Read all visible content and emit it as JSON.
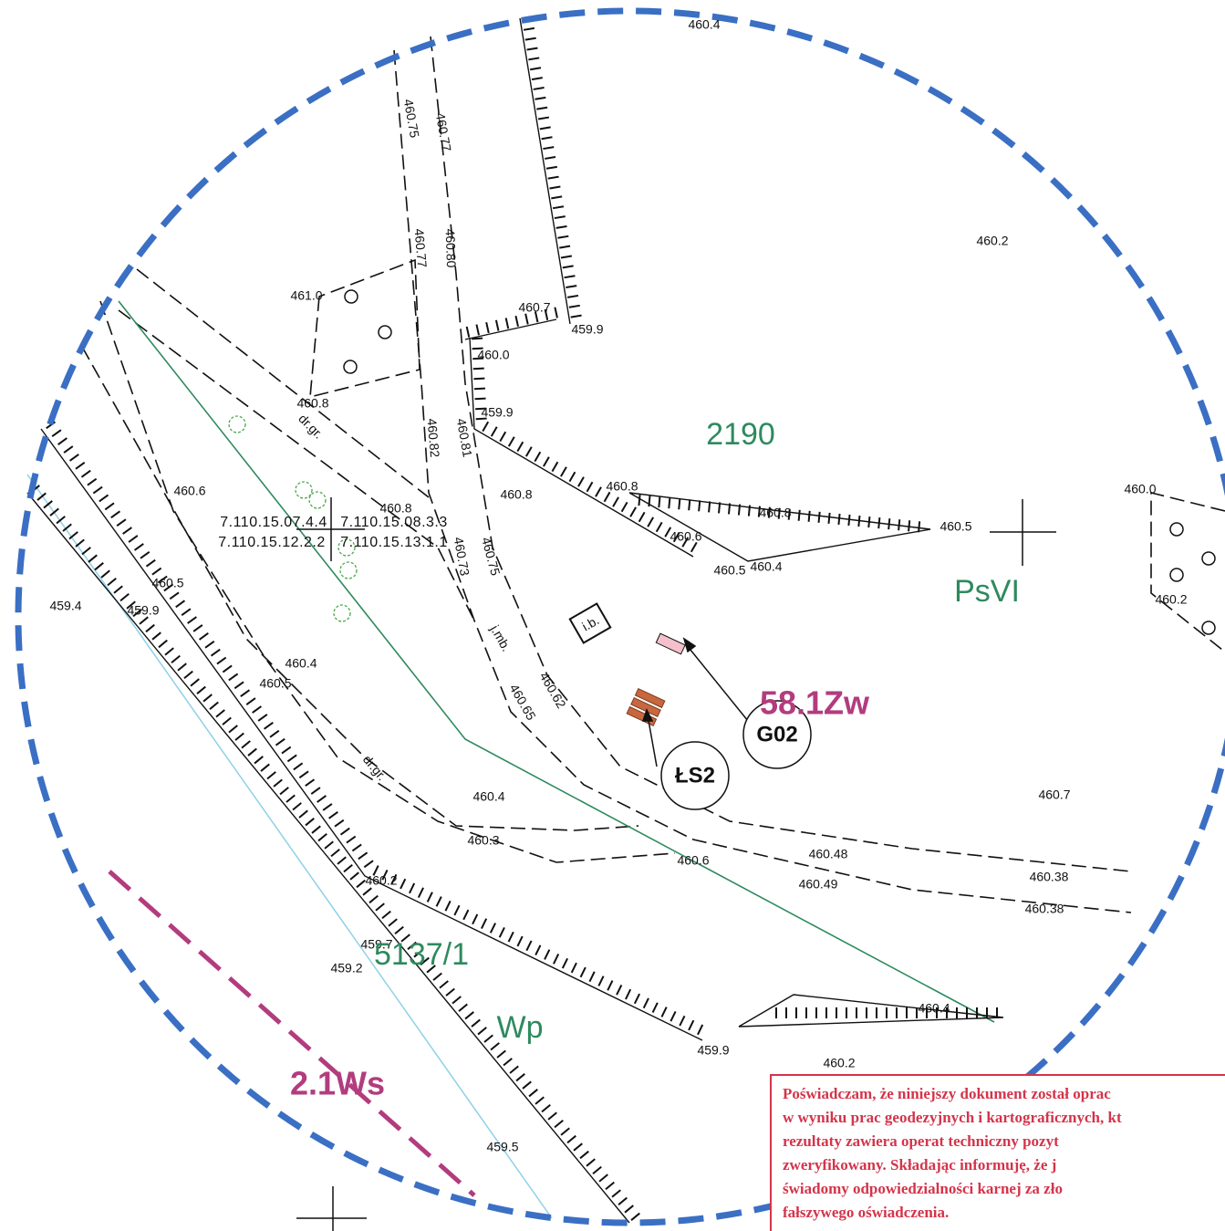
{
  "map": {
    "elevations": [
      "460.4",
      "460.75",
      "460.77",
      "460.77",
      "460.80",
      "460.2",
      "461.0",
      "460.7",
      "459.9",
      "460.0",
      "459.9",
      "460.8",
      "460.82",
      "460.81",
      "460.8",
      "460.8",
      "460.8",
      "460.6",
      "460.8",
      "460.6",
      "460.5",
      "460.0",
      "460.5",
      "460.4",
      "460.2",
      "460.73",
      "460.75",
      "460.5",
      "459.4",
      "459.9",
      "460.62",
      "460.65",
      "460.4",
      "460.5",
      "460.4",
      "460.7",
      "460.3",
      "460.48",
      "460.6",
      "460.38",
      "460.49",
      "460.38",
      "460.2",
      "459.7",
      "459.2",
      "460.4",
      "459.9",
      "460.2",
      "459.5"
    ],
    "notes": [
      "dr.gr.",
      "dr.gr.",
      "j.mb.",
      "i.b."
    ],
    "grid_codes": [
      "7.110.15.07.4.4",
      "7.110.15.08.3.3",
      "7.110.15.12.2.2",
      "7.110.15.13.1.1"
    ],
    "parcels": [
      "2190",
      "5137/1"
    ],
    "land_classes": [
      "PsVI",
      "Wp"
    ],
    "zones": [
      "58.1Zw",
      "2.1Ws"
    ],
    "callouts": [
      "G02",
      "ŁS2"
    ]
  },
  "stamp": {
    "lines": [
      "Poświadczam, że niniejszy dokument został oprac",
      "w wyniku prac geodezyjnych i kartograficznych, kt",
      "rezultaty zawiera operat techniczny pozyt",
      "zweryfikowany. Składając informuję, że j",
      "świadomy odpowiedzialności karnej za zło",
      "fałszywego oświadczenia."
    ]
  }
}
